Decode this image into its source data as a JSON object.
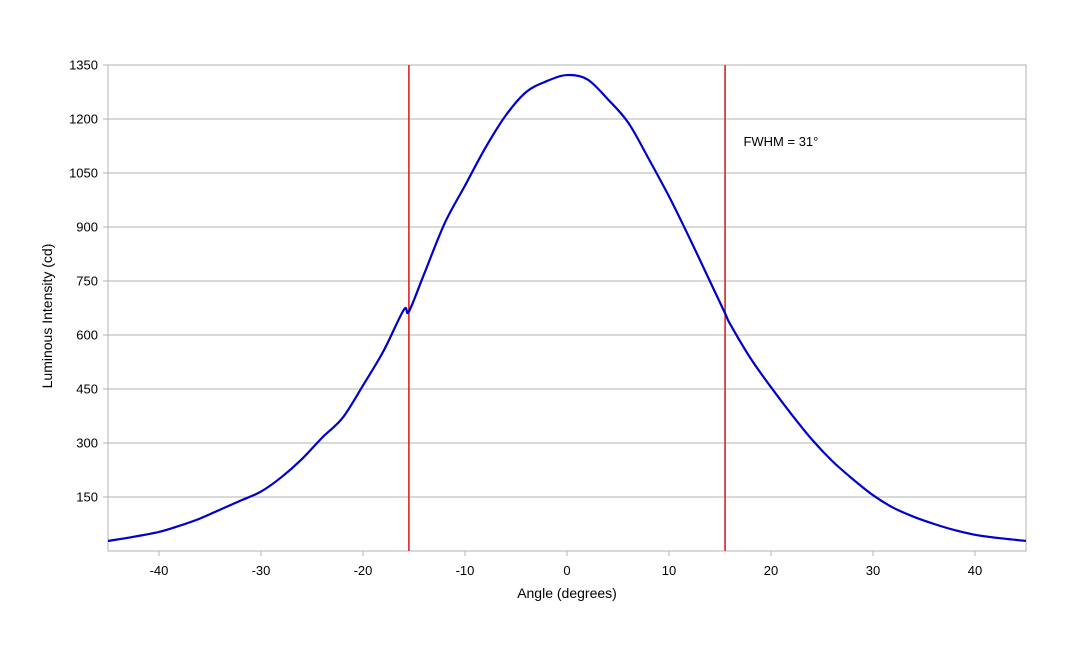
{
  "chart_data": {
    "type": "line",
    "xlabel": "Angle (degrees)",
    "ylabel": "Luminous Intensity (cd)",
    "xlim": [
      -45,
      45
    ],
    "ylim": [
      0,
      1350
    ],
    "xticks": [
      -40,
      -30,
      -20,
      -10,
      0,
      10,
      20,
      30,
      40
    ],
    "xtick_labels": [
      "-40",
      "-30",
      "-20",
      "-10",
      "0",
      "10",
      "20",
      "30",
      "40"
    ],
    "yticks": [
      150,
      300,
      450,
      600,
      750,
      900,
      1050,
      1200,
      1350
    ],
    "ytick_labels": [
      "150",
      "300",
      "450",
      "600",
      "750",
      "900",
      "1050",
      "1200",
      "1350"
    ],
    "grid": true,
    "series": [
      {
        "color": "#0000cc",
        "x": [
          -45,
          -43,
          -40,
          -38,
          -36,
          -34,
          -32,
          -30,
          -28,
          -26,
          -24,
          -22,
          -20,
          -18,
          -16,
          -15.5,
          -14,
          -12,
          -10,
          -8,
          -6,
          -4,
          -2,
          0,
          2,
          4,
          6,
          8,
          10,
          12,
          14,
          15.5,
          16,
          18,
          20,
          22,
          24,
          26,
          28,
          30,
          32,
          34,
          36,
          38,
          40,
          42,
          45
        ],
        "values": [
          28,
          37,
          53,
          70,
          90,
          115,
          140,
          165,
          205,
          255,
          315,
          370,
          460,
          555,
          670,
          665,
          770,
          910,
          1015,
          1120,
          1210,
          1275,
          1305,
          1322,
          1310,
          1255,
          1190,
          1090,
          985,
          870,
          750,
          660,
          630,
          535,
          455,
          380,
          310,
          250,
          200,
          155,
          120,
          95,
          75,
          58,
          45,
          37,
          28
        ]
      }
    ],
    "vertical_lines": [
      {
        "x": -15.5,
        "color": "#dd2222"
      },
      {
        "x": 15.5,
        "color": "#dd2222"
      }
    ],
    "annotations": [
      {
        "text": "FWHM = 31°",
        "x": 17.3,
        "y": 1125
      }
    ]
  },
  "colors": {
    "curve": "#0000cc",
    "fwhm_lines": "#dd2222",
    "grid": "#b3b3b3",
    "frame": "#b3b3b3"
  }
}
